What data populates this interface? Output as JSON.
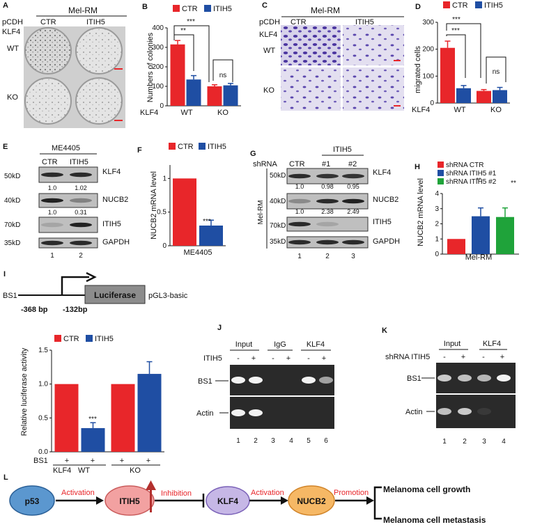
{
  "colors": {
    "ctr": "#e8262a",
    "itih5": "#1f4ea3",
    "green": "#1fa33a",
    "blot_bg": "#2a2a2a",
    "band": "#f2f2f2",
    "crystal": "#5a3fa6"
  },
  "panelA": {
    "letter": "A",
    "title": "Mel-RM",
    "pcdh": "pCDH",
    "klf4": "KLF4",
    "cols": [
      "CTR",
      "ITIH5"
    ],
    "rows": [
      "WT",
      "KO"
    ]
  },
  "panelB": {
    "letter": "B",
    "ylabel": "Numbers of colonies",
    "klf4": "KLF4",
    "groups": [
      "WT",
      "KO"
    ],
    "sig": [
      "**",
      "***",
      "ns"
    ]
  },
  "panelC": {
    "letter": "C",
    "title": "Mel-RM",
    "pcdh": "pCDH",
    "klf4": "KLF4",
    "cols": [
      "CTR",
      "ITIH5"
    ],
    "rows": [
      "WT",
      "KO"
    ]
  },
  "panelD": {
    "letter": "D",
    "ylabel": "migrated cells",
    "klf4": "KLF4",
    "groups": [
      "WT",
      "KO"
    ],
    "sig": [
      "***",
      "***",
      "ns"
    ]
  },
  "panelE": {
    "letter": "E",
    "title": "ME4405",
    "cols": [
      "CTR",
      "ITIH5"
    ],
    "markers": [
      "50kD",
      "40kD",
      "70kD",
      "35kD"
    ],
    "proteins": [
      "KLF4",
      "NUCB2",
      "ITIH5",
      "GAPDH"
    ],
    "q1": [
      "1.0",
      "1.02"
    ],
    "q2": [
      "1.0",
      "0.31"
    ],
    "lanes": [
      "1",
      "2"
    ]
  },
  "panelF": {
    "letter": "F",
    "ylabel": "NUCB2 mRNA level",
    "xlabel": "ME4405",
    "sig": "***"
  },
  "panelG": {
    "letter": "G",
    "shrna": "shRNA",
    "itih5": "ITIH5",
    "cols": [
      "CTR",
      "#1",
      "#2"
    ],
    "side": "Mel-RM",
    "markers": [
      "50kD",
      "40kD",
      "70kD",
      "35kD"
    ],
    "proteins": [
      "KLF4",
      "NUCB2",
      "ITIH5",
      "GAPDH"
    ],
    "q1": [
      "1.0",
      "0.98",
      "0.95"
    ],
    "q2": [
      "1.0",
      "2.38",
      "2.49"
    ],
    "lanes": [
      "1",
      "2",
      "3"
    ]
  },
  "panelH": {
    "letter": "H",
    "ylabel": "NUCB2 mRNA level",
    "xlabel": "Mel-RM",
    "sig": [
      "**",
      "**"
    ]
  },
  "panelI": {
    "letter": "I",
    "bs1": "BS1",
    "luc": "Luciferase",
    "vector": "pGL3-basic",
    "p1": "-368 bp",
    "p2": "-132bp",
    "ylabel": "Relative luciferase activity",
    "sig": "***",
    "bsrow": "BS1",
    "plus": "+",
    "klf4": "KLF4",
    "wt": "WT",
    "ko": "KO"
  },
  "panelJ": {
    "letter": "J",
    "groups": [
      "Input",
      "IgG",
      "KLF4"
    ],
    "itih5": "ITIH5",
    "signs": [
      "-",
      "+",
      "-",
      "+",
      "-",
      "+"
    ],
    "rows": [
      "BS1",
      "Actin"
    ],
    "lanes": [
      "1",
      "2",
      "3",
      "4",
      "5",
      "6"
    ]
  },
  "panelK": {
    "letter": "K",
    "groups": [
      "Input",
      "KLF4"
    ],
    "shrna": "shRNA ITIH5",
    "signs": [
      "-",
      "+",
      "-",
      "+"
    ],
    "rows": [
      "BS1",
      "Actin"
    ],
    "lanes": [
      "1",
      "2",
      "3",
      "4"
    ]
  },
  "panelL": {
    "letter": "L",
    "p53": "p53",
    "itih5": "ITIH5",
    "klf4": "KLF4",
    "nucb2": "NUCB2",
    "act1": "Activation",
    "inh": "Inhibition",
    "act2": "Activation",
    "prom": "Promotion",
    "out1": "Melanoma cell growth",
    "out2": "Melanoma cell metastasis"
  },
  "chart_data": [
    {
      "type": "bar",
      "panel": "B",
      "ylabel": "Numbers of colonies",
      "ylim": [
        0,
        400
      ],
      "yticks": [
        0,
        100,
        200,
        300,
        400
      ],
      "categories": [
        "WT",
        "KO"
      ],
      "series": [
        {
          "name": "CTR",
          "values": [
            315,
            100
          ],
          "errors": [
            20,
            8
          ]
        },
        {
          "name": "ITIH5",
          "values": [
            135,
            105
          ],
          "errors": [
            20,
            10
          ]
        }
      ]
    },
    {
      "type": "bar",
      "panel": "D",
      "ylabel": "migrated cells",
      "ylim": [
        0,
        300
      ],
      "yticks": [
        0,
        100,
        200,
        300
      ],
      "categories": [
        "WT",
        "KO"
      ],
      "series": [
        {
          "name": "CTR",
          "values": [
            205,
            45
          ],
          "errors": [
            25,
            5
          ]
        },
        {
          "name": "ITIH5",
          "values": [
            55,
            48
          ],
          "errors": [
            10,
            10
          ]
        }
      ]
    },
    {
      "type": "bar",
      "panel": "F",
      "ylabel": "NUCB2 mRNA level",
      "ylim": [
        0,
        1.2
      ],
      "yticks": [
        0,
        0.5,
        1
      ],
      "categories": [
        "ME4405"
      ],
      "series": [
        {
          "name": "CTR",
          "values": [
            1.0
          ],
          "errors": [
            0
          ]
        },
        {
          "name": "ITIH5",
          "values": [
            0.3
          ],
          "errors": [
            0.08
          ]
        }
      ]
    },
    {
      "type": "bar",
      "panel": "H",
      "ylabel": "NUCB2 mRNA level",
      "ylim": [
        0,
        4
      ],
      "yticks": [
        0,
        1,
        2,
        3,
        4
      ],
      "categories": [
        "Mel-RM"
      ],
      "series": [
        {
          "name": "shRNA CTR",
          "values": [
            1.0
          ],
          "errors": [
            0
          ]
        },
        {
          "name": "shRNA ITIH5 #1",
          "values": [
            2.5
          ],
          "errors": [
            0.55
          ]
        },
        {
          "name": "shRNA ITIH5 #2",
          "values": [
            2.45
          ],
          "errors": [
            0.6
          ]
        }
      ]
    },
    {
      "type": "bar",
      "panel": "I",
      "ylabel": "Relative luciferase activity",
      "ylim": [
        0,
        1.5
      ],
      "yticks": [
        0,
        0.5,
        1.0,
        1.5
      ],
      "categories": [
        "WT",
        "KO"
      ],
      "series": [
        {
          "name": "CTR",
          "values": [
            1.0,
            1.0
          ],
          "errors": [
            0,
            0
          ]
        },
        {
          "name": "ITIH5",
          "values": [
            0.35,
            1.15
          ],
          "errors": [
            0.08,
            0.18
          ]
        }
      ]
    }
  ]
}
